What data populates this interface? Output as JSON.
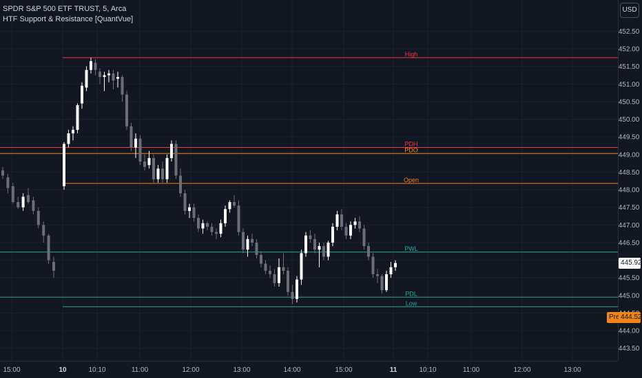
{
  "header": {
    "symbol_line": "SPDR S&P 500 ETF TRUST, 5, Arca",
    "indicator_line": "HTF Support & Resistance [QuantVue]"
  },
  "currency_button": "USD",
  "price_badges": {
    "current": "445.92",
    "pre_tag": "Pre",
    "pre_value": "444.52"
  },
  "colors": {
    "background": "#131722",
    "bull": "#ffffff",
    "bear": "#6b6e76",
    "high_line": "#f23645",
    "open_line": "#f0851a",
    "low_line": "#22ab94",
    "axis_text": "#b2b5be"
  },
  "chart_data": {
    "type": "candlestick",
    "symbol": "SPDR S&P 500 ETF TRUST",
    "interval": "5",
    "exchange": "Arca",
    "ylim": [
      443.3,
      452.8
    ],
    "price_ticks": [
      "452.50",
      "452.00",
      "451.50",
      "451.00",
      "450.50",
      "450.00",
      "449.50",
      "449.00",
      "448.50",
      "448.00",
      "447.50",
      "447.00",
      "446.50",
      "446.00",
      "445.50",
      "445.00",
      "444.50",
      "444.00",
      "443.50"
    ],
    "time_ticks": [
      {
        "label": "15:00",
        "bold": false
      },
      {
        "label": "10",
        "bold": true
      },
      {
        "label": "10:10",
        "bold": false
      },
      {
        "label": "11:00",
        "bold": false
      },
      {
        "label": "12:00",
        "bold": false
      },
      {
        "label": "13:00",
        "bold": false
      },
      {
        "label": "14:00",
        "bold": false
      },
      {
        "label": "15:00",
        "bold": false
      },
      {
        "label": "11",
        "bold": true
      },
      {
        "label": "10:10",
        "bold": false
      },
      {
        "label": "11:00",
        "bold": false
      },
      {
        "label": "12:00",
        "bold": false
      },
      {
        "label": "13:00",
        "bold": false
      }
    ],
    "levels": [
      {
        "label": "High",
        "price": 451.75,
        "color": "high"
      },
      {
        "label": "PDH",
        "price": 449.2,
        "color": "high"
      },
      {
        "label": "PDO",
        "price": 449.03,
        "color": "open"
      },
      {
        "label": "Open",
        "price": 448.18,
        "color": "open"
      },
      {
        "label": "PWL",
        "price": 446.23,
        "color": "low"
      },
      {
        "label": "PDL",
        "price": 444.95,
        "color": "low"
      },
      {
        "label": "Low",
        "price": 444.68,
        "color": "low"
      }
    ],
    "candles_day1": [
      [
        448.55,
        448.65,
        448.3,
        448.4
      ],
      [
        448.35,
        448.45,
        447.9,
        448.05
      ],
      [
        448.1,
        448.2,
        447.6,
        447.65
      ],
      [
        447.65,
        447.8,
        447.45,
        447.5
      ],
      [
        447.5,
        447.9,
        447.4,
        447.8
      ],
      [
        447.85,
        448.05,
        447.6,
        447.65
      ],
      [
        447.7,
        447.8,
        447.3,
        447.4
      ],
      [
        447.4,
        447.5,
        446.9,
        447.0
      ],
      [
        447.0,
        447.1,
        446.5,
        446.7
      ],
      [
        446.7,
        446.75,
        445.9,
        446.0
      ],
      [
        445.95,
        446.1,
        445.5,
        445.7
      ]
    ],
    "candles_day2": [
      [
        448.1,
        449.35,
        448.0,
        449.3
      ],
      [
        449.3,
        449.7,
        449.2,
        449.6
      ],
      [
        449.6,
        449.8,
        449.4,
        449.7
      ],
      [
        449.7,
        450.45,
        449.6,
        450.4
      ],
      [
        450.45,
        451.05,
        450.3,
        450.95
      ],
      [
        450.9,
        451.5,
        450.8,
        451.4
      ],
      [
        451.4,
        451.75,
        451.3,
        451.65
      ],
      [
        451.6,
        451.7,
        451.25,
        451.4
      ],
      [
        451.35,
        451.45,
        451.0,
        451.2
      ],
      [
        451.2,
        451.35,
        450.8,
        451.25
      ],
      [
        451.25,
        451.4,
        451.05,
        451.3
      ],
      [
        451.3,
        451.4,
        450.85,
        451.1
      ],
      [
        451.15,
        451.35,
        450.9,
        451.2
      ],
      [
        451.2,
        451.25,
        450.5,
        450.7
      ],
      [
        450.7,
        450.8,
        449.7,
        449.8
      ],
      [
        449.8,
        449.9,
        449.1,
        449.2
      ],
      [
        449.2,
        449.6,
        448.9,
        449.45
      ],
      [
        449.45,
        449.55,
        448.7,
        448.8
      ],
      [
        448.8,
        449.0,
        448.55,
        448.65
      ],
      [
        448.7,
        449.1,
        448.6,
        448.9
      ],
      [
        448.9,
        449.0,
        448.2,
        448.3
      ],
      [
        448.3,
        448.7,
        448.2,
        448.6
      ],
      [
        448.6,
        448.8,
        448.2,
        448.3
      ],
      [
        448.3,
        449.0,
        448.2,
        448.9
      ],
      [
        448.9,
        449.4,
        448.8,
        449.3
      ],
      [
        449.3,
        449.4,
        448.3,
        448.4
      ],
      [
        448.4,
        448.6,
        447.8,
        447.9
      ],
      [
        447.9,
        448.0,
        447.3,
        447.4
      ],
      [
        447.4,
        447.6,
        447.2,
        447.5
      ],
      [
        447.5,
        447.6,
        447.1,
        447.2
      ],
      [
        447.2,
        447.3,
        446.8,
        446.9
      ],
      [
        446.9,
        447.15,
        446.75,
        447.05
      ],
      [
        447.05,
        447.1,
        446.85,
        446.95
      ],
      [
        446.95,
        447.05,
        446.7,
        446.8
      ],
      [
        446.8,
        446.9,
        446.6,
        446.75
      ],
      [
        446.75,
        447.15,
        446.65,
        447.05
      ],
      [
        447.05,
        447.55,
        446.95,
        447.45
      ],
      [
        447.45,
        447.7,
        447.35,
        447.65
      ],
      [
        447.65,
        447.85,
        447.5,
        447.55
      ],
      [
        447.55,
        447.7,
        446.7,
        446.8
      ],
      [
        446.8,
        446.9,
        446.2,
        446.3
      ],
      [
        446.3,
        446.7,
        446.1,
        446.6
      ],
      [
        446.6,
        446.75,
        446.4,
        446.5
      ],
      [
        446.5,
        446.6,
        446.05,
        446.15
      ],
      [
        446.15,
        446.25,
        445.8,
        445.9
      ],
      [
        445.9,
        446.0,
        445.6,
        445.7
      ],
      [
        445.7,
        445.85,
        445.5,
        445.6
      ],
      [
        445.6,
        445.75,
        445.25,
        445.35
      ],
      [
        445.35,
        446.05,
        445.25,
        445.8
      ],
      [
        445.8,
        446.2,
        445.6,
        445.7
      ],
      [
        445.7,
        445.8,
        445.0,
        445.1
      ],
      [
        445.1,
        445.3,
        444.75,
        444.9
      ],
      [
        444.9,
        445.55,
        444.8,
        445.45
      ],
      [
        445.45,
        446.3,
        445.3,
        446.2
      ],
      [
        446.2,
        446.8,
        446.1,
        446.7
      ],
      [
        446.7,
        446.85,
        446.5,
        446.6
      ],
      [
        446.6,
        446.75,
        446.2,
        446.3
      ],
      [
        446.3,
        446.5,
        445.8,
        446.4
      ],
      [
        446.4,
        446.5,
        446.0,
        446.1
      ],
      [
        446.1,
        446.55,
        446.0,
        446.5
      ],
      [
        446.5,
        447.05,
        446.4,
        446.95
      ],
      [
        446.95,
        447.4,
        446.85,
        447.3
      ],
      [
        447.3,
        447.45,
        446.85,
        446.95
      ],
      [
        446.95,
        447.05,
        446.6,
        446.7
      ],
      [
        446.7,
        447.1,
        446.6,
        447.0
      ],
      [
        447.0,
        447.2,
        446.9,
        447.1
      ],
      [
        447.1,
        447.25,
        446.8,
        446.9
      ],
      [
        446.9,
        447.0,
        446.3,
        446.4
      ],
      [
        446.4,
        446.5,
        446.0,
        446.1
      ],
      [
        446.1,
        446.2,
        445.5,
        445.6
      ],
      [
        445.6,
        445.75,
        445.35,
        445.55
      ],
      [
        445.55,
        445.6,
        445.05,
        445.15
      ],
      [
        445.15,
        445.7,
        445.1,
        445.6
      ],
      [
        445.6,
        445.95,
        445.5,
        445.8
      ],
      [
        445.8,
        446.0,
        445.7,
        445.92
      ]
    ]
  }
}
